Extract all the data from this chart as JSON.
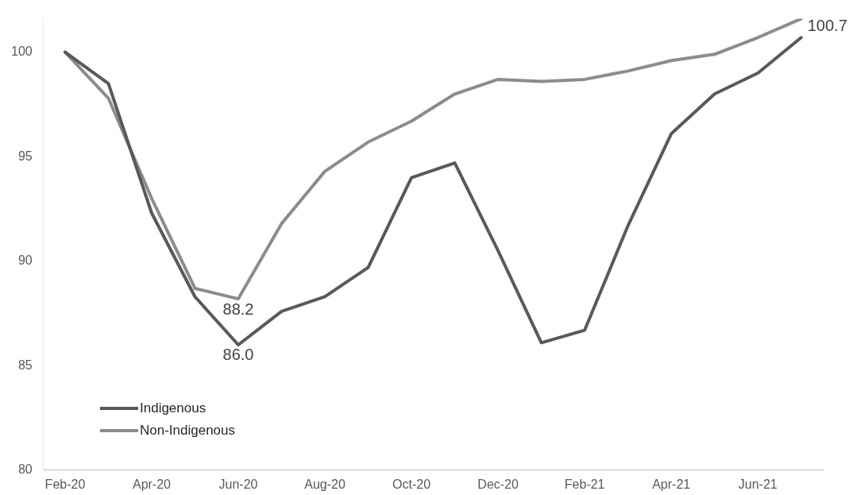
{
  "chart_data": {
    "type": "line",
    "categories": [
      "Feb-20",
      null,
      "Apr-20",
      null,
      "Jun-20",
      null,
      "Aug-20",
      null,
      "Oct-20",
      null,
      "Dec-20",
      null,
      "Feb-21",
      null,
      "Apr-21",
      null,
      "Jun-21",
      null
    ],
    "series": [
      {
        "name": "Indigenous",
        "color": "#595959",
        "values": [
          100,
          98.5,
          92.3,
          88.3,
          86.0,
          87.6,
          88.3,
          89.7,
          94.0,
          94.7,
          90.5,
          86.1,
          86.7,
          91.7,
          96.1,
          98.0,
          99.0,
          100.7
        ],
        "value_labels": [
          null,
          null,
          null,
          null,
          "86.0",
          null,
          null,
          null,
          null,
          null,
          null,
          null,
          null,
          null,
          null,
          null,
          null,
          "100.7"
        ]
      },
      {
        "name": "Non-Indigenous",
        "color": "#8c8c8c",
        "values": [
          100,
          97.8,
          93.0,
          88.7,
          88.2,
          91.8,
          94.3,
          95.7,
          96.7,
          98.0,
          98.7,
          98.6,
          98.7,
          99.1,
          99.6,
          99.9,
          100.7,
          101.6
        ],
        "value_labels": [
          null,
          null,
          null,
          null,
          "88.2",
          null,
          null,
          null,
          null,
          null,
          null,
          null,
          null,
          null,
          null,
          null,
          null,
          null
        ]
      }
    ],
    "ylim": [
      80,
      101.6
    ],
    "yticks": [
      80,
      85,
      90,
      95,
      100
    ],
    "grid": false,
    "legend": "bottom left",
    "marker": "none",
    "line_style": "solid"
  }
}
